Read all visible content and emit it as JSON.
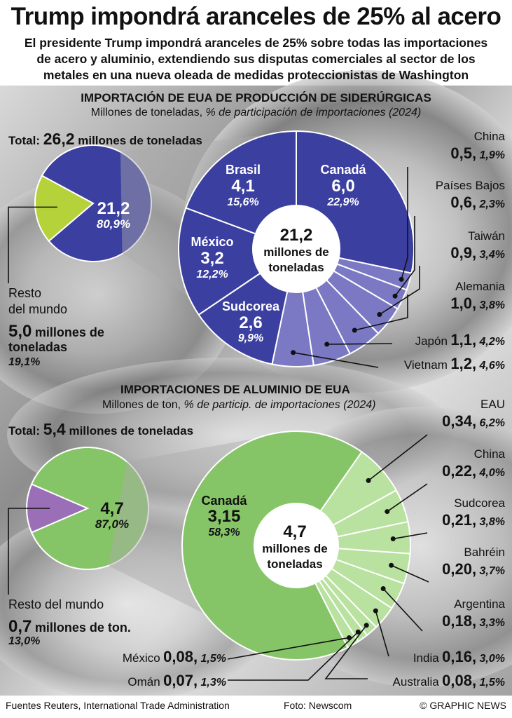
{
  "title": "Trump impondrá aranceles de 25% al acero",
  "subtitle_lines": [
    "El presidente Trump impondrá aranceles de 25% sobre todas las importaciones",
    "de acero y aluminio, extendiendo sus disputas comerciales al sector de los",
    "metales en una nueva oleada de medidas proteccionistas de Washington"
  ],
  "colors": {
    "steel_main": "#3b3fa0",
    "steel_minor": "#7b79c4",
    "steel_rest": "#b6d23a",
    "alu_main": "#86c567",
    "alu_minor": "#b9e19f",
    "alu_rest": "#9a6fb8"
  },
  "chart_data": [
    {
      "type": "pie",
      "title": "IMPORTACIÓN DE EUA DE PRODUCCIÓN DE SIDERÚRGICAS",
      "units": "Millones de toneladas,",
      "units_italic": "% de participación de importaciones (2024)",
      "total_prefix": "Total:",
      "total_value": "26,2",
      "total_suffix": "millones de toneladas",
      "world": {
        "slices": [
          {
            "name": "",
            "value": 21.2,
            "value_label": "21,2",
            "pct": "80,9%"
          },
          {
            "name": "Resto del mundo",
            "value": 5.0,
            "value_label": "5,0",
            "pct": "19,1%"
          }
        ],
        "rest_label_1": "Resto",
        "rest_label_2": "del mundo",
        "rest_value": "5,0",
        "rest_value_suffix": "millones de",
        "rest_value_suffix2": "toneladas",
        "rest_pct": "19,1%"
      },
      "center_value": "21,2",
      "center_text_1": "millones de",
      "center_text_2": "toneladas",
      "series": [
        {
          "name": "Canadá",
          "value": 6.0,
          "value_label": "6,0",
          "pct": "22,9%"
        },
        {
          "name": "China",
          "value": 0.5,
          "value_label": "0,5,",
          "pct": "1,9%"
        },
        {
          "name": "Países Bajos",
          "value": 0.6,
          "value_label": "0,6,",
          "pct": "2,3%"
        },
        {
          "name": "Taiwán",
          "value": 0.9,
          "value_label": "0,9,",
          "pct": "3,4%"
        },
        {
          "name": "Alemania",
          "value": 1.0,
          "value_label": "1,0,",
          "pct": "3,8%"
        },
        {
          "name": "Japón",
          "value": 1.1,
          "value_label": "1,1,",
          "pct": "4,2%"
        },
        {
          "name": "Vietnam",
          "value": 1.2,
          "value_label": "1,2,",
          "pct": "4,6%"
        },
        {
          "name": "Sudcorea",
          "value": 2.6,
          "value_label": "2,6",
          "pct": "9,9%"
        },
        {
          "name": "México",
          "value": 3.2,
          "value_label": "3,2",
          "pct": "12,2%"
        },
        {
          "name": "Brasil",
          "value": 4.1,
          "value_label": "4,1",
          "pct": "15,6%"
        }
      ]
    },
    {
      "type": "pie",
      "title": "IMPORTACIONES DE ALUMINIO DE EUA",
      "units": "Millones de ton,",
      "units_italic": "% de particip. de importaciones (2024)",
      "total_prefix": "Total:",
      "total_value": "5,4",
      "total_suffix": "millones de toneladas",
      "world": {
        "slices": [
          {
            "name": "",
            "value": 4.7,
            "value_label": "4,7",
            "pct": "87,0%"
          },
          {
            "name": "Resto del mundo",
            "value": 0.7,
            "value_label": "0,7",
            "pct": "13,0%"
          }
        ],
        "rest_label": "Resto del mundo",
        "rest_value": "0,7",
        "rest_value_suffix": "millones de ton.",
        "rest_pct": "13,0%"
      },
      "center_value": "4,7",
      "center_text_1": "millones de",
      "center_text_2": "toneladas",
      "series": [
        {
          "name": "EAU",
          "value": 0.34,
          "value_label": "0,34,",
          "pct": "6,2%"
        },
        {
          "name": "China",
          "value": 0.22,
          "value_label": "0,22,",
          "pct": "4,0%"
        },
        {
          "name": "Sudcorea",
          "value": 0.21,
          "value_label": "0,21,",
          "pct": "3,8%"
        },
        {
          "name": "Bahréin",
          "value": 0.2,
          "value_label": "0,20,",
          "pct": "3,7%"
        },
        {
          "name": "Argentina",
          "value": 0.18,
          "value_label": "0,18,",
          "pct": "3,3%"
        },
        {
          "name": "India",
          "value": 0.16,
          "value_label": "0,16,",
          "pct": "3,0%"
        },
        {
          "name": "Australia",
          "value": 0.08,
          "value_label": "0,08,",
          "pct": "1,5%"
        },
        {
          "name": "Omán",
          "value": 0.07,
          "value_label": "0,07,",
          "pct": "1,3%"
        },
        {
          "name": "México",
          "value": 0.08,
          "value_label": "0,08,",
          "pct": "1,5%"
        },
        {
          "name": "Canadá",
          "value": 3.15,
          "value_label": "3,15",
          "pct": "58,3%"
        }
      ]
    }
  ],
  "footer": {
    "sources": "Fuentes Reuters, International Trade Administration",
    "photo": "Foto: Newscom",
    "credit": "© GRAPHIC NEWS"
  }
}
